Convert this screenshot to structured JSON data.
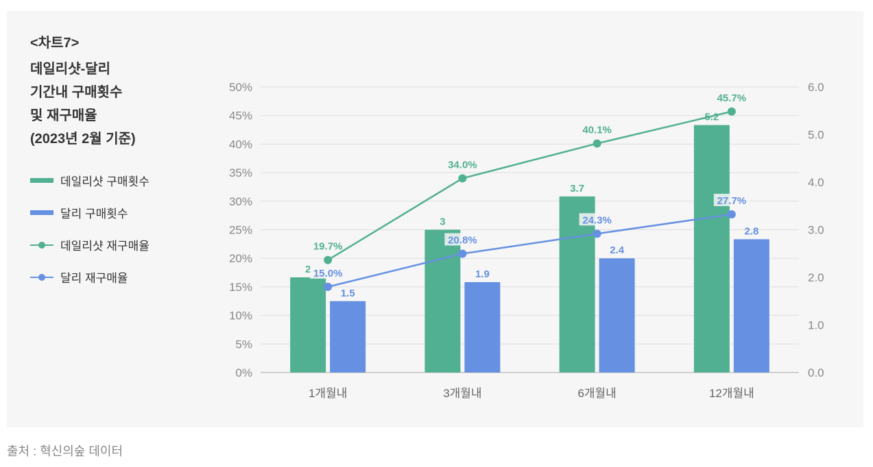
{
  "chart_label": "<차트7>",
  "title_lines": [
    "데일리샷-달리",
    "기간내 구매횟수",
    "및 재구매율",
    "(2023년 2월 기준)"
  ],
  "source": "출처 : 혁신의숲 데이터",
  "colors": {
    "green": "#52b092",
    "blue": "#6690e2",
    "gridline": "#dddddd",
    "axis": "#aaaaaa"
  },
  "legend": [
    {
      "label": "데일리샷 구매횟수",
      "kind": "bar",
      "color": "#52b092"
    },
    {
      "label": "달리 구매횟수",
      "kind": "bar",
      "color": "#6690e2"
    },
    {
      "label": "데일리샷 재구매율",
      "kind": "line",
      "color": "#52b092"
    },
    {
      "label": "달리 재구매율",
      "kind": "line",
      "color": "#6690e2"
    }
  ],
  "chart_data": {
    "type": "bar",
    "categories": [
      "1개월내",
      "3개월내",
      "6개월내",
      "12개월내"
    ],
    "series": [
      {
        "name": "데일리샷 구매횟수",
        "type": "bar",
        "axis": "right",
        "values": [
          2,
          3,
          3.7,
          5.2
        ],
        "labels": [
          "2",
          "3",
          "3.7",
          "5.2"
        ]
      },
      {
        "name": "달리 구매횟수",
        "type": "bar",
        "axis": "right",
        "values": [
          1.5,
          1.9,
          2.4,
          2.8
        ],
        "labels": [
          "1.5",
          "1.9",
          "2.4",
          "2.8"
        ]
      },
      {
        "name": "데일리샷 재구매율",
        "type": "line",
        "axis": "left",
        "values": [
          19.7,
          34.0,
          40.1,
          45.7
        ],
        "labels": [
          "19.7%",
          "34.0%",
          "40.1%",
          "45.7%"
        ]
      },
      {
        "name": "달리 재구매율",
        "type": "line",
        "axis": "left",
        "values": [
          15.0,
          20.8,
          24.3,
          27.7
        ],
        "labels": [
          "15.0%",
          "20.8%",
          "24.3%",
          "27.7%"
        ]
      }
    ],
    "left_axis": {
      "ylim": [
        0,
        50
      ],
      "ticks": [
        "0%",
        "5%",
        "10%",
        "15%",
        "20%",
        "25%",
        "30%",
        "35%",
        "40%",
        "45%",
        "50%"
      ]
    },
    "right_axis": {
      "ylim": [
        0,
        6
      ],
      "ticks": [
        "0.0",
        "1.0",
        "2.0",
        "3.0",
        "4.0",
        "5.0",
        "6.0"
      ]
    },
    "grid": true
  }
}
